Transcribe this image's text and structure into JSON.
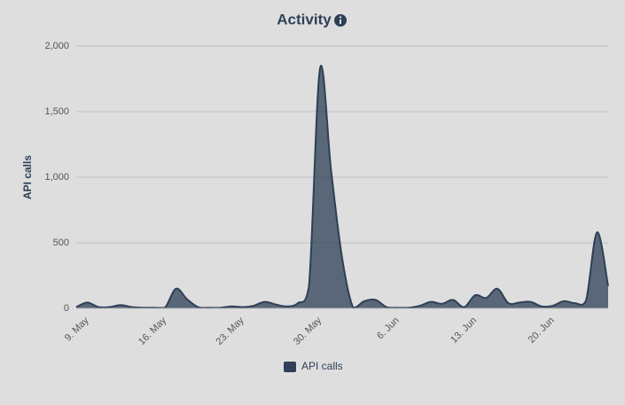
{
  "chart_data": {
    "type": "areaspline",
    "title": "Activity",
    "y_label": "API calls",
    "categories": [
      null,
      "9. May",
      null,
      null,
      null,
      null,
      null,
      null,
      "16. May",
      null,
      null,
      null,
      null,
      null,
      null,
      "23. May",
      null,
      null,
      null,
      null,
      null,
      null,
      "30. May",
      null,
      null,
      null,
      null,
      null,
      null,
      "6. Jun",
      null,
      null,
      null,
      null,
      null,
      null,
      "13. Jun",
      null,
      null,
      null,
      null,
      null,
      null,
      "20. Jun",
      null,
      null,
      null,
      null,
      null
    ],
    "series": [
      {
        "name": "API calls",
        "color": "#2e3f57",
        "values": [
          10,
          45,
          10,
          10,
          25,
          10,
          5,
          5,
          5,
          150,
          70,
          10,
          5,
          5,
          15,
          10,
          20,
          50,
          30,
          15,
          40,
          170,
          1830,
          1050,
          380,
          5,
          55,
          65,
          10,
          5,
          5,
          20,
          50,
          35,
          65,
          10,
          100,
          80,
          150,
          40,
          45,
          50,
          15,
          20,
          55,
          40,
          60,
          580,
          170
        ]
      }
    ],
    "ylim": [
      0,
      2000
    ],
    "yticks": [
      0,
      500,
      {
        "value": 1000,
        "label": "1,000"
      },
      {
        "value": 1500,
        "label": "1,500"
      },
      {
        "value": 2000,
        "label": "2,000"
      }
    ],
    "grid": true,
    "legend": "bottom"
  }
}
